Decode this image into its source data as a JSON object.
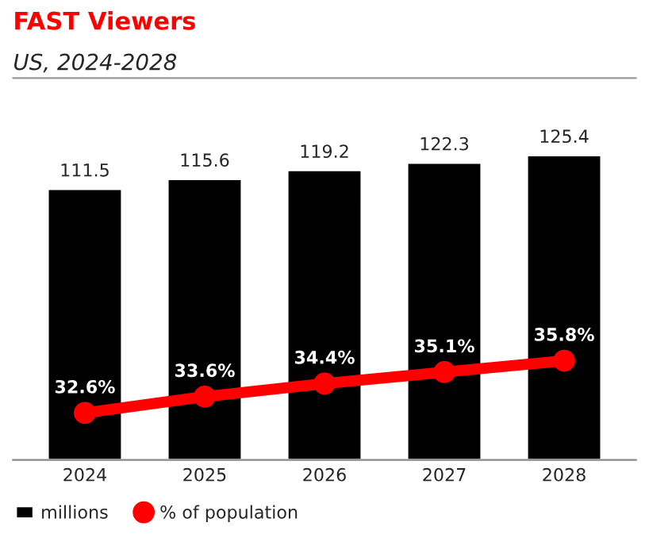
{
  "chart_data": {
    "type": "bar",
    "title": "FAST Viewers",
    "subtitle": "US, 2024-2028",
    "categories": [
      "2024",
      "2025",
      "2026",
      "2027",
      "2028"
    ],
    "series": [
      {
        "name": "millions",
        "color": "#000000",
        "values": [
          111.5,
          115.6,
          119.2,
          122.3,
          125.4
        ]
      },
      {
        "name": "% of population",
        "type": "line",
        "axis": "y2",
        "color": "#ff0000",
        "marker": "circle",
        "values": [
          32.6,
          33.6,
          34.4,
          35.1,
          35.8
        ],
        "value_labels": [
          "32.6%",
          "33.6%",
          "34.4%",
          "35.1%",
          "35.8%"
        ]
      }
    ],
    "data_labels": true,
    "tick_labels": "x",
    "legend": "bottom left",
    "grid": false
  }
}
